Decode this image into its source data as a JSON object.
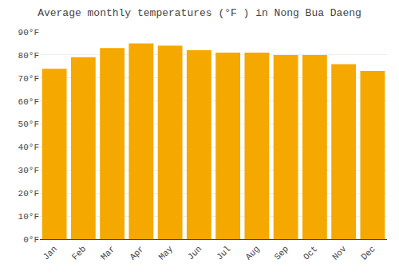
{
  "chart_data": {
    "type": "bar",
    "title": "Average monthly temperatures (°F ) in Nong Bua Daeng",
    "categories": [
      "Jan",
      "Feb",
      "Mar",
      "Apr",
      "May",
      "Jun",
      "Jul",
      "Aug",
      "Sep",
      "Oct",
      "Nov",
      "Dec"
    ],
    "values": [
      74,
      79,
      83,
      85,
      84,
      82,
      81,
      81,
      80,
      80,
      76,
      73
    ],
    "color": "#F5A800",
    "ylim": [
      0,
      90
    ],
    "yticks": [
      {
        "value": 0,
        "label": "0°F"
      },
      {
        "value": 10,
        "label": "10°F"
      },
      {
        "value": 20,
        "label": "20°F"
      },
      {
        "value": 30,
        "label": "30°F"
      },
      {
        "value": 40,
        "label": "40°F"
      },
      {
        "value": 50,
        "label": "50°F"
      },
      {
        "value": 60,
        "label": "60°F"
      },
      {
        "value": 70,
        "label": "70°F"
      },
      {
        "value": 80,
        "label": "80°F"
      },
      {
        "value": 90,
        "label": "90°F"
      }
    ],
    "grid": true
  }
}
